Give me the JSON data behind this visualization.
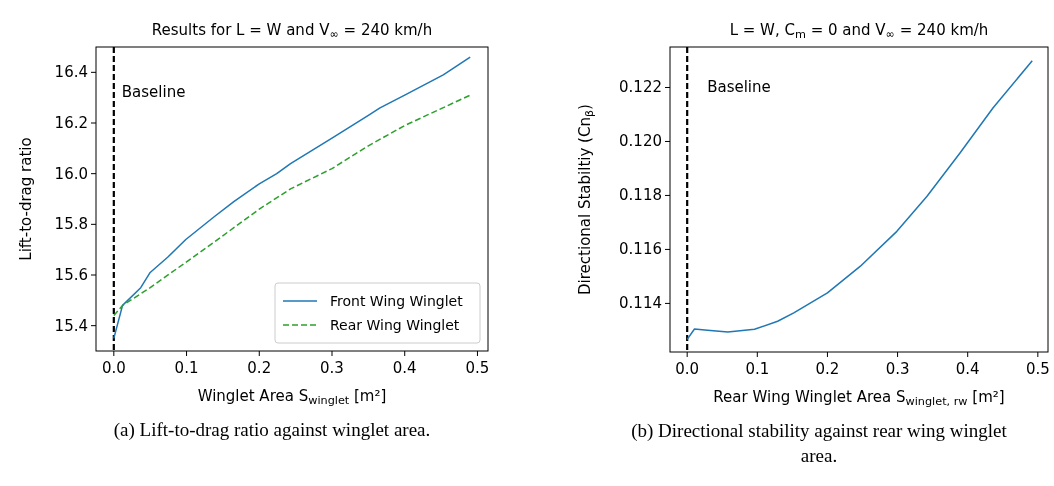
{
  "chart_data": [
    {
      "type": "line",
      "title": "Results for L = W and V$_{∞}$ = 240 km/h",
      "xlabel": "Winglet Area S$_{winglet}$ [m²]",
      "ylabel": "Lift-to-drag ratio",
      "xlim": [
        -0.0245,
        0.5145
      ],
      "xticks": [
        {
          "value": 0,
          "label": "0.0"
        },
        0.1,
        0.2,
        0.3,
        0.4,
        0.5
      ],
      "ylim": [
        15.3,
        16.5
      ],
      "yticks": [
        15.4,
        15.6,
        15.8,
        {
          "value": 16,
          "label": "16.0"
        },
        16.2,
        16.4
      ],
      "legend": "bottom right",
      "grid": false,
      "series": [
        {
          "name": "Front Wing Winglet",
          "color": "#1f77b4",
          "line_style": "solid",
          "x": [
            0,
            0.012,
            0.037,
            0.05,
            0.074,
            0.099,
            0.138,
            0.165,
            0.2,
            0.224,
            0.243,
            0.3,
            0.35,
            0.366,
            0.4,
            0.453,
            0.49
          ],
          "values": [
            15.35,
            15.48,
            15.55,
            15.61,
            15.67,
            15.74,
            15.83,
            15.89,
            15.96,
            16.0,
            16.04,
            16.14,
            16.23,
            16.26,
            16.31,
            16.39,
            16.46
          ]
        },
        {
          "name": "Rear Wing Winglet",
          "color": "#2ca02c",
          "line_style": "dashed",
          "x": [
            0,
            0.012,
            0.05,
            0.099,
            0.138,
            0.2,
            0.243,
            0.3,
            0.35,
            0.4,
            0.49
          ],
          "values": [
            15.44,
            15.48,
            15.55,
            15.65,
            15.73,
            15.86,
            15.94,
            16.02,
            16.11,
            16.19,
            16.31
          ]
        }
      ],
      "ref_lines": [
        {
          "axis": "x",
          "value": 0,
          "label": "Baseline",
          "color": "#000000",
          "line_style": "dashed"
        }
      ],
      "annotations": [
        "(a) Lift-to-drag ratio against winglet area."
      ]
    },
    {
      "type": "line",
      "title": "L = W, C$_{m}$ = 0 and V$_{∞}$ = 240 km/h",
      "xlabel": "Rear Wing Winglet Area S$_{winglet, rw}$ [m²]",
      "ylabel": "Directional Stabiltiy (Cn$_{β}$)",
      "xlim": [
        -0.0245,
        0.5145
      ],
      "xticks": [
        {
          "value": 0,
          "label": "0.0"
        },
        0.1,
        0.2,
        0.3,
        0.4,
        0.5
      ],
      "ylim": [
        0.1122,
        0.1235
      ],
      "yticks": [
        0.114,
        0.116,
        0.118,
        {
          "value": 0.12,
          "label": "0.120"
        },
        0.122
      ],
      "grid": false,
      "series": [
        {
          "color": "#1f77b4",
          "line_style": "solid",
          "x": [
            0,
            0.0104,
            0.029,
            0.058,
            0.096,
            0.129,
            0.152,
            0.2,
            0.247,
            0.299,
            0.342,
            0.389,
            0.436,
            0.492
          ],
          "values": [
            0.11267,
            0.11305,
            0.11301,
            0.11294,
            0.11304,
            0.11334,
            0.11365,
            0.11439,
            0.11538,
            0.11667,
            0.11797,
            0.11957,
            0.12124,
            0.12299
          ]
        }
      ],
      "ref_lines": [
        {
          "axis": "x",
          "value": 0,
          "label": "Baseline",
          "color": "#000000",
          "line_style": "dashed"
        }
      ],
      "annotations": [
        "(b) Directional stability against rear wing winglet area."
      ]
    }
  ]
}
